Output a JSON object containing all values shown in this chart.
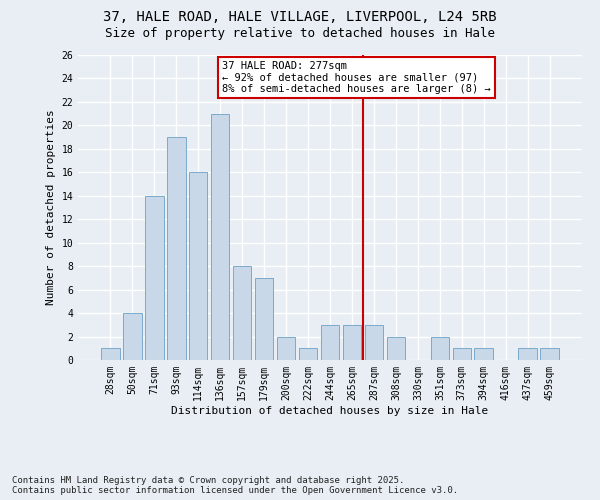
{
  "title1": "37, HALE ROAD, HALE VILLAGE, LIVERPOOL, L24 5RB",
  "title2": "Size of property relative to detached houses in Hale",
  "xlabel": "Distribution of detached houses by size in Hale",
  "ylabel": "Number of detached properties",
  "categories": [
    "28sqm",
    "50sqm",
    "71sqm",
    "93sqm",
    "114sqm",
    "136sqm",
    "157sqm",
    "179sqm",
    "200sqm",
    "222sqm",
    "244sqm",
    "265sqm",
    "287sqm",
    "308sqm",
    "330sqm",
    "351sqm",
    "373sqm",
    "394sqm",
    "416sqm",
    "437sqm",
    "459sqm"
  ],
  "values": [
    1,
    4,
    14,
    19,
    16,
    21,
    8,
    7,
    2,
    1,
    3,
    3,
    3,
    2,
    0,
    2,
    1,
    1,
    0,
    1,
    1
  ],
  "bar_color": "#c8d8e8",
  "bar_edge_color": "#7aaacc",
  "vline_x_index": 11.5,
  "vline_color": "#cc0000",
  "annotation_text": "37 HALE ROAD: 277sqm\n← 92% of detached houses are smaller (97)\n8% of semi-detached houses are larger (8) →",
  "annotation_box_color": "#ffffff",
  "annotation_box_edge_color": "#cc0000",
  "ylim": [
    0,
    26
  ],
  "yticks": [
    0,
    2,
    4,
    6,
    8,
    10,
    12,
    14,
    16,
    18,
    20,
    22,
    24,
    26
  ],
  "background_color": "#e8eef4",
  "grid_color": "#ffffff",
  "footnote": "Contains HM Land Registry data © Crown copyright and database right 2025.\nContains public sector information licensed under the Open Government Licence v3.0.",
  "title_fontsize": 10,
  "title2_fontsize": 9,
  "label_fontsize": 8,
  "tick_fontsize": 7,
  "annotation_fontsize": 7.5,
  "footnote_fontsize": 6.5
}
